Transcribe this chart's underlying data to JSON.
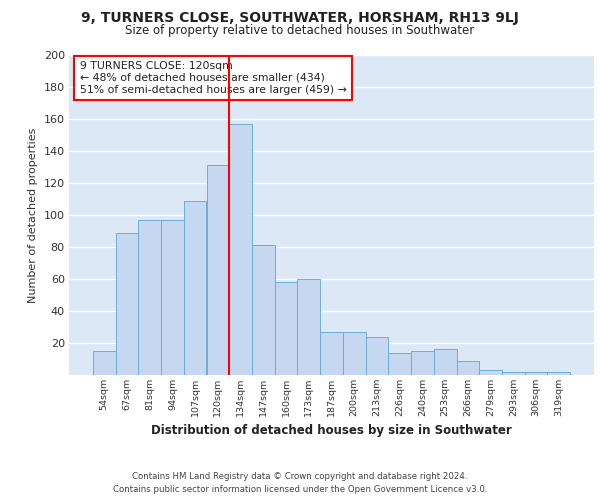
{
  "title": "9, TURNERS CLOSE, SOUTHWATER, HORSHAM, RH13 9LJ",
  "subtitle": "Size of property relative to detached houses in Southwater",
  "xlabel": "Distribution of detached houses by size in Southwater",
  "ylabel": "Number of detached properties",
  "bar_labels": [
    "54sqm",
    "67sqm",
    "81sqm",
    "94sqm",
    "107sqm",
    "120sqm",
    "134sqm",
    "147sqm",
    "160sqm",
    "173sqm",
    "187sqm",
    "200sqm",
    "213sqm",
    "226sqm",
    "240sqm",
    "253sqm",
    "266sqm",
    "279sqm",
    "293sqm",
    "306sqm",
    "319sqm"
  ],
  "bar_values": [
    15,
    89,
    97,
    97,
    109,
    131,
    157,
    81,
    58,
    60,
    27,
    27,
    24,
    14,
    15,
    16,
    9,
    3,
    2,
    2,
    2
  ],
  "bar_color": "#c5d8f0",
  "bar_edge_color": "#6baed6",
  "background_color": "#dce8f5",
  "grid_color": "#ffffff",
  "vline_color": "red",
  "vline_x_index": 5,
  "annotation_text": "9 TURNERS CLOSE: 120sqm\n← 48% of detached houses are smaller (434)\n51% of semi-detached houses are larger (459) →",
  "annotation_box_color": "white",
  "annotation_box_edge_color": "red",
  "ylim": [
    0,
    200
  ],
  "yticks": [
    0,
    20,
    40,
    60,
    80,
    100,
    120,
    140,
    160,
    180,
    200
  ],
  "footer_line1": "Contains HM Land Registry data © Crown copyright and database right 2024.",
  "footer_line2": "Contains public sector information licensed under the Open Government Licence v3.0."
}
